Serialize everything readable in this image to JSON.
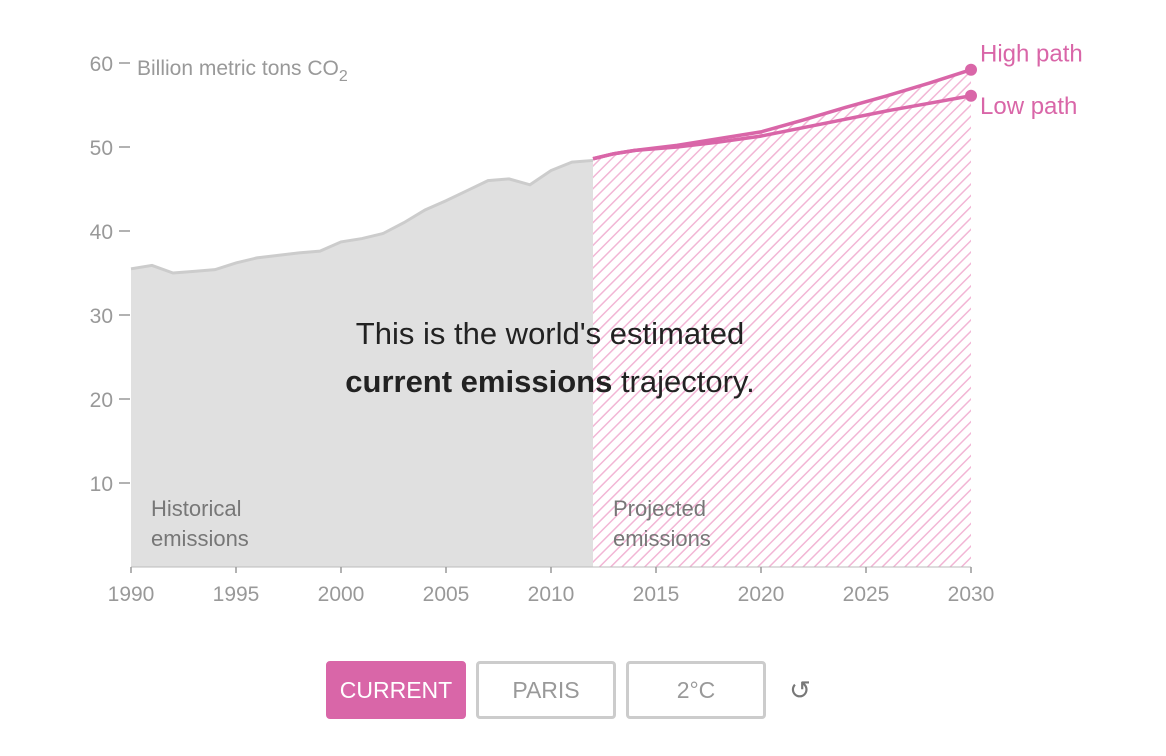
{
  "chart_data": {
    "type": "area",
    "unit_label": "Billion metric tons CO",
    "unit_subscript": "2",
    "x_ticks": [
      1990,
      1995,
      2000,
      2005,
      2010,
      2015,
      2020,
      2025,
      2030
    ],
    "y_ticks": [
      10,
      20,
      30,
      40,
      50,
      60
    ],
    "xlim": [
      1990,
      2030
    ],
    "ylim": [
      0,
      60
    ],
    "grid": false,
    "historical": {
      "label_line1": "Historical",
      "label_line2": "emissions",
      "x": [
        1990,
        1991,
        1992,
        1993,
        1994,
        1995,
        1996,
        1997,
        1998,
        1999,
        2000,
        2001,
        2002,
        2003,
        2004,
        2005,
        2006,
        2007,
        2008,
        2009,
        2010,
        2011,
        2012
      ],
      "y": [
        35.5,
        35.9,
        35.0,
        35.2,
        35.4,
        36.2,
        36.8,
        37.1,
        37.4,
        37.6,
        38.7,
        39.1,
        39.7,
        41.0,
        42.5,
        43.6,
        44.8,
        46.0,
        46.2,
        45.5,
        47.2,
        48.2,
        48.4
      ],
      "color": "#e0e0e0",
      "line_color": "#cccccc"
    },
    "projected": {
      "label_line1": "Projected",
      "label_line2": "emissions",
      "x": [
        2012,
        2013,
        2014,
        2016,
        2018,
        2020,
        2022,
        2024,
        2026,
        2028,
        2030
      ],
      "high": [
        48.6,
        49.2,
        49.6,
        50.2,
        51.0,
        51.8,
        53.2,
        54.7,
        56.1,
        57.6,
        59.2
      ],
      "low": [
        48.6,
        49.2,
        49.6,
        50.0,
        50.6,
        51.3,
        52.3,
        53.3,
        54.3,
        55.2,
        56.1
      ],
      "color": "#d966a8",
      "hatch_color": "#f2b6d5"
    },
    "series": [
      {
        "name": "High path"
      },
      {
        "name": "Low path"
      }
    ]
  },
  "annotation": {
    "line1": "This is the world's estimated",
    "bold": "current emissions",
    "rest": "trajectory."
  },
  "controls": {
    "buttons": [
      "CURRENT",
      "PARIS",
      "2°C"
    ],
    "active": "CURRENT",
    "reset_glyph": "↺"
  },
  "colors": {
    "accent": "#d966a8",
    "axis_text": "#999999"
  }
}
